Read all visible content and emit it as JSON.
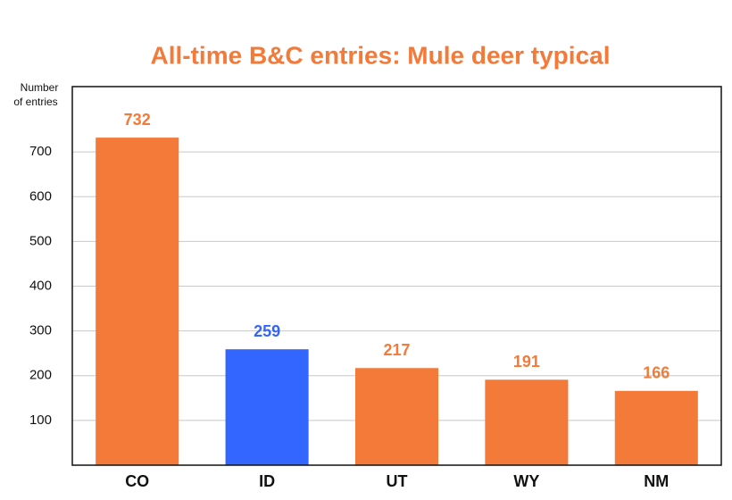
{
  "chart_data": {
    "type": "bar",
    "title": "All-time B&C entries:  Mule deer typical",
    "y_label": [
      "Number",
      "of entries"
    ],
    "categories": [
      "CO",
      "ID",
      "UT",
      "WY",
      "NM"
    ],
    "values": [
      732,
      259,
      217,
      191,
      166
    ],
    "colors": [
      "#f47a3a",
      "#3366ff",
      "#f47a3a",
      "#f47a3a",
      "#f47a3a"
    ],
    "ylim": [
      0,
      846
    ],
    "yticks": [
      100,
      200,
      300,
      400,
      500,
      600,
      700
    ],
    "grid": true
  }
}
